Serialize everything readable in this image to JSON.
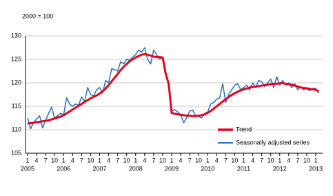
{
  "chart_data": {
    "type": "line",
    "unit_label": "2000 = 100",
    "categories": [
      "1",
      null,
      null,
      "4",
      null,
      null,
      "7",
      null,
      null,
      "10",
      null,
      null,
      "1",
      null,
      null,
      "4",
      null,
      null,
      "7",
      null,
      null,
      "10",
      null,
      null,
      "1",
      null,
      null,
      "4",
      null,
      null,
      "7",
      null,
      null,
      "10",
      null,
      null,
      "1",
      null,
      null,
      "4",
      null,
      null,
      "7",
      null,
      null,
      "10",
      null,
      null,
      "1",
      null,
      null,
      "4",
      null,
      null,
      "7",
      null,
      null,
      "10",
      null,
      null,
      "1",
      null,
      null,
      "4",
      null,
      null,
      "7",
      null,
      null,
      "10",
      null,
      null,
      "1",
      null,
      null,
      "4",
      null,
      null,
      "7",
      null,
      null,
      "10",
      null,
      null,
      "1",
      null,
      null,
      "4",
      null,
      null,
      "7",
      null,
      null,
      "10",
      null,
      null,
      "1",
      null
    ],
    "x_group_labels": [
      "2005",
      "2006",
      "2007",
      "2008",
      "2009",
      "2010",
      "2011",
      "2012",
      "2013"
    ],
    "series": [
      {
        "name": "Trend",
        "color": "#e8001c",
        "width": 3,
        "values": [
          111.3,
          111.4,
          111.5,
          111.6,
          111.7,
          111.8,
          111.9,
          112.0,
          112.2,
          112.4,
          112.6,
          112.8,
          113.1,
          113.5,
          113.9,
          114.3,
          114.7,
          115.1,
          115.5,
          115.9,
          116.3,
          116.7,
          117.0,
          117.3,
          117.7,
          118.2,
          118.8,
          119.5,
          120.3,
          121.1,
          121.9,
          122.7,
          123.4,
          124.0,
          124.6,
          125.0,
          125.4,
          125.7,
          126.0,
          126.1,
          126.0,
          125.8,
          125.6,
          125.5,
          125.5,
          125.4,
          122.0,
          119.8,
          113.6,
          113.4,
          113.3,
          113.2,
          113.1,
          113.0,
          113.0,
          112.9,
          112.9,
          113.0,
          113.1,
          113.3,
          113.6,
          114.0,
          114.5,
          115.0,
          115.5,
          116.0,
          116.5,
          117.0,
          117.4,
          117.8,
          118.1,
          118.4,
          118.6,
          118.8,
          119.0,
          119.1,
          119.2,
          119.3,
          119.4,
          119.5,
          119.6,
          119.7,
          119.8,
          119.8,
          119.9,
          119.9,
          119.8,
          119.7,
          119.6,
          119.4,
          119.2,
          119.0,
          118.9,
          118.8,
          118.7,
          118.6,
          118.5,
          118.2
        ]
      },
      {
        "name": "Seasonally adjusted series",
        "color": "#2a6ebb",
        "width": 1.5,
        "values": [
          112.5,
          110.2,
          111.5,
          112.3,
          113.0,
          110.4,
          112.0,
          113.5,
          114.8,
          112.5,
          113.0,
          113.5,
          113.2,
          116.8,
          115.5,
          115.0,
          115.5,
          115.2,
          117.0,
          116.0,
          119.0,
          117.5,
          117.2,
          118.5,
          119.0,
          117.8,
          120.5,
          120.0,
          123.0,
          122.8,
          122.5,
          124.5,
          124.0,
          125.0,
          124.8,
          125.5,
          126.0,
          127.0,
          126.5,
          127.5,
          125.0,
          124.0,
          127.0,
          126.0,
          125.0,
          125.5,
          122.0,
          119.3,
          114.0,
          114.3,
          113.8,
          113.2,
          111.5,
          112.5,
          114.0,
          114.2,
          113.0,
          112.8,
          112.5,
          113.5,
          113.8,
          115.5,
          115.8,
          116.5,
          116.8,
          119.8,
          115.8,
          117.5,
          118.5,
          119.5,
          119.8,
          118.5,
          119.0,
          119.5,
          118.5,
          120.0,
          119.0,
          120.5,
          120.2,
          119.2,
          120.0,
          120.8,
          119.0,
          121.3,
          119.5,
          120.5,
          119.5,
          120.0,
          119.0,
          119.8,
          118.5,
          119.2,
          118.5,
          119.0,
          118.3,
          118.8,
          118.8,
          117.8
        ]
      }
    ],
    "ylim": [
      105,
      130
    ],
    "yticks": [
      105,
      110,
      115,
      120,
      125,
      130
    ],
    "grid": true,
    "legend": "lower right"
  }
}
